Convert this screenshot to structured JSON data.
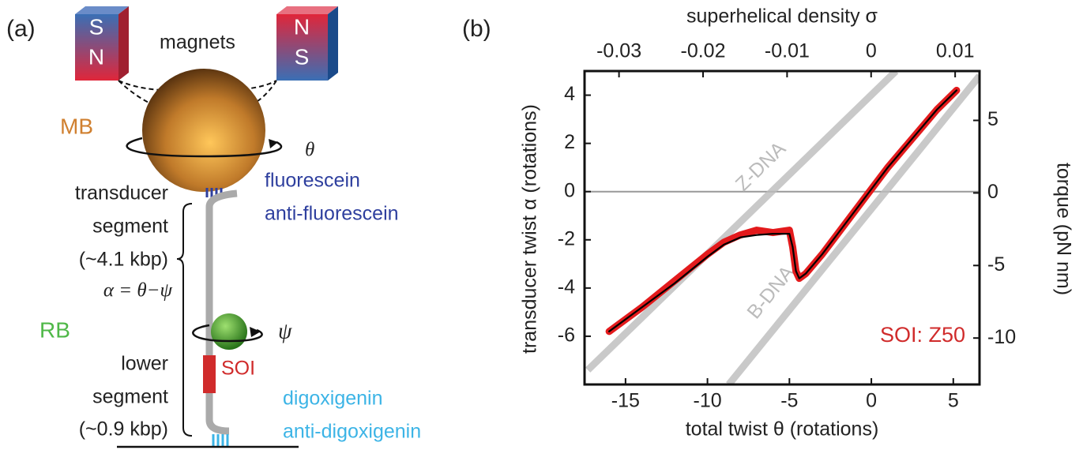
{
  "panel_a": {
    "label": "(a)",
    "magnet_left": [
      "S",
      "N"
    ],
    "magnet_right": [
      "N",
      "S"
    ],
    "magnets": "magnets",
    "mb": "MB",
    "theta": "θ",
    "fluorescein": "fluorescein",
    "anti_fluorescein": "anti-fluorescein",
    "transducer": [
      "transducer",
      "segment",
      "(~4.1 kbp)"
    ],
    "alpha_eq": "α = θ−ψ",
    "rb": "RB",
    "psi": "ψ",
    "lower": [
      "lower",
      "segment",
      "(~0.9 kbp)"
    ],
    "soi": "SOI",
    "digoxigenin": "digoxigenin",
    "anti_digoxigenin": "anti-digoxigenin"
  },
  "chart_data": {
    "type": "line",
    "label": "(b)",
    "x_label": "total twist θ (rotations)",
    "x2_label": "superhelical density σ",
    "y_label": "transducer twist α (rotations)",
    "y2_label": "torque (pN nm)",
    "annotation": "SOI: Z50",
    "xlim": [
      -17.5,
      6.6
    ],
    "xticks": [
      -15,
      -10,
      -5,
      0,
      5
    ],
    "x2lim": [
      -0.0341,
      0.0129
    ],
    "x2ticks": [
      -0.03,
      -0.02,
      -0.01,
      0,
      0.01
    ],
    "ylim": [
      -8,
      5
    ],
    "yticks": [
      -6,
      -4,
      -2,
      0,
      2,
      4
    ],
    "y2lim": [
      -13.2,
      8.4
    ],
    "y2ticks": [
      -10,
      -5,
      0,
      5
    ],
    "x": [
      -16,
      -14,
      -12,
      -10,
      -9,
      -8,
      -7,
      -6,
      -5,
      -4.8,
      -4.6,
      -4.4,
      -4,
      -3,
      -2,
      -1,
      0,
      1,
      2,
      3,
      4,
      5.2
    ],
    "series": [
      {
        "color": "#e31a1c",
        "values": [
          -5.8,
          -4.8,
          -3.7,
          -2.6,
          -2.1,
          -1.8,
          -1.6,
          -1.7,
          -1.6,
          -2.3,
          -3.3,
          -3.6,
          -3.4,
          -2.6,
          -1.7,
          -0.8,
          0.1,
          1.0,
          1.8,
          2.6,
          3.4,
          4.2
        ]
      },
      {
        "color": "#000000",
        "values": [
          -5.8,
          -4.8,
          -3.8,
          -2.7,
          -2.2,
          -1.9,
          -1.8,
          -1.75,
          -1.75,
          -2.3,
          -3.3,
          -3.6,
          -3.4,
          -2.6,
          -1.7,
          -0.8,
          0.1,
          1.0,
          1.8,
          2.6,
          3.4,
          4.2
        ]
      }
    ],
    "reference_lines": [
      {
        "label": "Z-DNA",
        "x": [
          -17.3,
          1.5
        ],
        "values": [
          -7.4,
          5
        ]
      },
      {
        "label": "B-DNA",
        "x": [
          -8.7,
          6.6
        ],
        "values": [
          -8,
          4.8
        ]
      }
    ]
  }
}
